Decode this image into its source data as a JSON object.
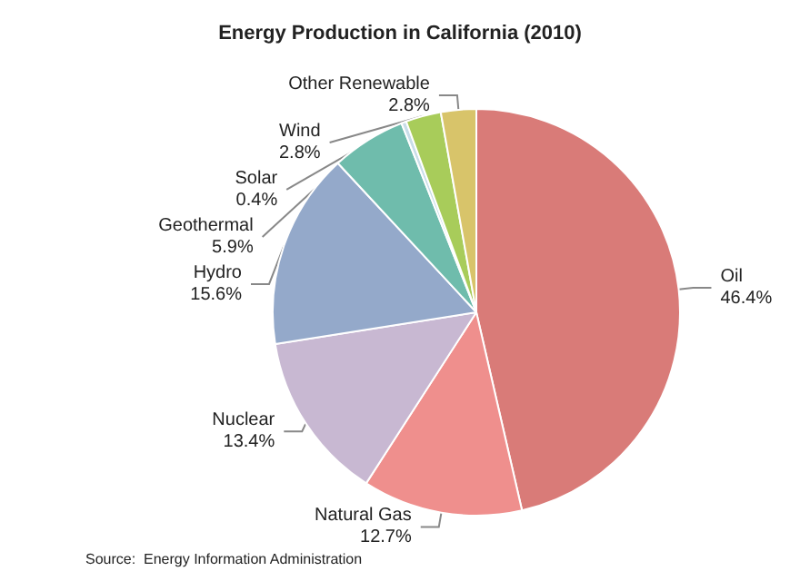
{
  "chart_data": {
    "type": "pie",
    "title": "Energy Production in California (2010)",
    "categories": [
      "Oil",
      "Natural Gas",
      "Nuclear",
      "Hydro",
      "Geothermal",
      "Solar",
      "Wind",
      "Other Renewable"
    ],
    "values": [
      46.4,
      12.7,
      13.4,
      15.6,
      5.9,
      0.4,
      2.8,
      2.8
    ],
    "colors": [
      "#d97b78",
      "#ef8f8d",
      "#c8b8d2",
      "#94a9ca",
      "#6fbcac",
      "#c8dde8",
      "#a8cc5a",
      "#d8c46a"
    ],
    "value_labels": [
      "46.4%",
      "12.7%",
      "13.4%",
      "15.6%",
      "5.9%",
      "0.4%",
      "2.8%",
      "2.8%"
    ],
    "legend": false,
    "annotations": [
      "Source:  Energy Information Administration"
    ]
  }
}
